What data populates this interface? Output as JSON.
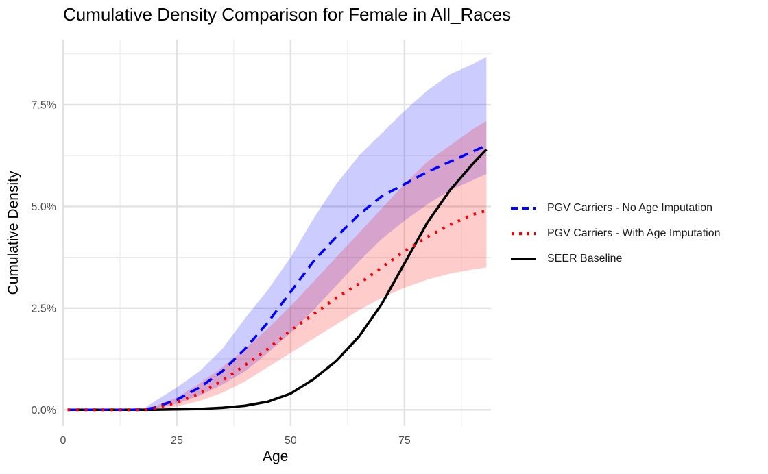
{
  "chart_data": {
    "type": "line",
    "title": "Cumulative Density Comparison for Female in All_Races",
    "xlabel": "Age",
    "ylabel": "Cumulative Density",
    "xlim": [
      0,
      94
    ],
    "ylim": [
      -0.004,
      0.091
    ],
    "x_ticks": [
      0,
      25,
      50,
      75
    ],
    "x_tick_labels": [
      "0",
      "25",
      "50",
      "75"
    ],
    "y_ticks": [
      0,
      0.025,
      0.05,
      0.075
    ],
    "y_tick_labels": [
      "0.0%",
      "2.5%",
      "5.0%",
      "7.5%"
    ],
    "grid": true,
    "legend_position": "right",
    "series": [
      {
        "name": "PGV Carriers - No Age Imputation",
        "line_style": "dashed",
        "color": "#0000ff",
        "band_color": "#ccccff",
        "x": [
          1,
          5,
          10,
          15,
          18,
          20,
          25,
          30,
          35,
          40,
          45,
          50,
          55,
          60,
          65,
          70,
          75,
          80,
          85,
          90,
          93
        ],
        "values": [
          0,
          0,
          0,
          0,
          0.0001,
          0.0005,
          0.0025,
          0.0055,
          0.0095,
          0.015,
          0.0215,
          0.029,
          0.0365,
          0.0425,
          0.048,
          0.0525,
          0.0555,
          0.0585,
          0.061,
          0.0635,
          0.065
        ],
        "lower": [
          0,
          0,
          0,
          0,
          0,
          0.0003,
          0.0015,
          0.0035,
          0.0062,
          0.0095,
          0.014,
          0.019,
          0.0245,
          0.0305,
          0.0365,
          0.042,
          0.0465,
          0.0505,
          0.054,
          0.0565,
          0.058
        ],
        "upper": [
          0,
          0,
          0,
          0,
          0.0005,
          0.002,
          0.0055,
          0.0095,
          0.015,
          0.0225,
          0.0295,
          0.0375,
          0.047,
          0.0555,
          0.0625,
          0.068,
          0.0735,
          0.0785,
          0.0825,
          0.085,
          0.0868
        ]
      },
      {
        "name": "PGV Carriers - With Age Imputation",
        "line_style": "dotted",
        "color": "#ff0000",
        "band_color": "#ffcccc",
        "x": [
          1,
          5,
          10,
          15,
          18,
          20,
          25,
          30,
          35,
          40,
          45,
          50,
          55,
          60,
          65,
          70,
          75,
          80,
          85,
          90,
          93
        ],
        "values": [
          0,
          0,
          0,
          0,
          0,
          0.0003,
          0.0018,
          0.004,
          0.0072,
          0.011,
          0.015,
          0.0195,
          0.0235,
          0.0275,
          0.031,
          0.035,
          0.039,
          0.0425,
          0.0455,
          0.048,
          0.049
        ],
        "lower": [
          0,
          0,
          0,
          0,
          0,
          0.0002,
          0.0008,
          0.0022,
          0.0042,
          0.007,
          0.0105,
          0.014,
          0.0175,
          0.021,
          0.0245,
          0.0275,
          0.03,
          0.032,
          0.0335,
          0.0345,
          0.035
        ],
        "upper": [
          0,
          0,
          0,
          0,
          0.0002,
          0.0008,
          0.003,
          0.0065,
          0.0105,
          0.015,
          0.02,
          0.0255,
          0.0315,
          0.0375,
          0.0435,
          0.0495,
          0.0555,
          0.061,
          0.065,
          0.069,
          0.071
        ]
      },
      {
        "name": "SEER Baseline",
        "line_style": "solid",
        "color": "#000000",
        "x": [
          1,
          10,
          20,
          25,
          30,
          35,
          40,
          45,
          50,
          55,
          60,
          65,
          70,
          75,
          80,
          85,
          90,
          93
        ],
        "values": [
          0,
          0,
          0,
          0.0001,
          0.0002,
          0.0005,
          0.001,
          0.002,
          0.004,
          0.0075,
          0.012,
          0.018,
          0.026,
          0.036,
          0.046,
          0.054,
          0.0605,
          0.064
        ]
      }
    ]
  }
}
